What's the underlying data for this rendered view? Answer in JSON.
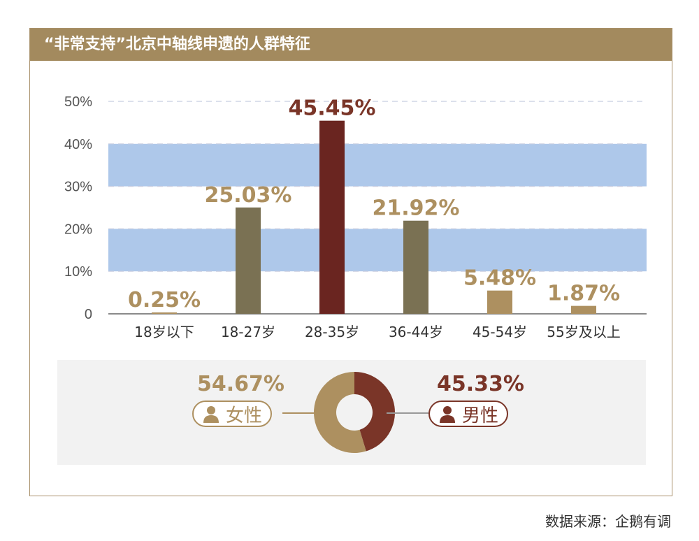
{
  "title": "“非常支持”北京中轴线申遗的人群特征",
  "source": "数据来源：企鹅有调",
  "colors": {
    "header": "#a38a5e",
    "band": "#aec8ea",
    "female": "#ad9060",
    "male": "#7a3528",
    "bar_default": "#7a7153",
    "bar_highlight": "#6a2520",
    "bar_light": "#ad9060"
  },
  "chart_data": [
    {
      "type": "bar",
      "categories": [
        "18岁以下",
        "18-27岁",
        "28-35岁",
        "36-44岁",
        "45-54岁",
        "55岁及以上"
      ],
      "values": [
        0.25,
        25.03,
        45.45,
        21.92,
        5.48,
        1.87
      ],
      "value_labels": [
        "0.25%",
        "25.03%",
        "45.45%",
        "21.92%",
        "5.48%",
        "1.87%"
      ],
      "y_ticks": [
        "0",
        "10%",
        "20%",
        "30%",
        "40%",
        "50%"
      ],
      "ylim": [
        0,
        50
      ],
      "grid": true,
      "bar_colors": [
        "#ad9060",
        "#7a7153",
        "#6a2520",
        "#7a7153",
        "#ad9060",
        "#ad9060"
      ],
      "label_colors": [
        "#ad9060",
        "#ad9060",
        "#7a3528",
        "#ad9060",
        "#ad9060",
        "#ad9060"
      ]
    },
    {
      "type": "pie",
      "categories": [
        "女性",
        "男性"
      ],
      "values": [
        54.67,
        45.33
      ],
      "value_labels": [
        "54.67%",
        "45.33%"
      ],
      "colors": [
        "#ad9060",
        "#7a3528"
      ]
    }
  ]
}
